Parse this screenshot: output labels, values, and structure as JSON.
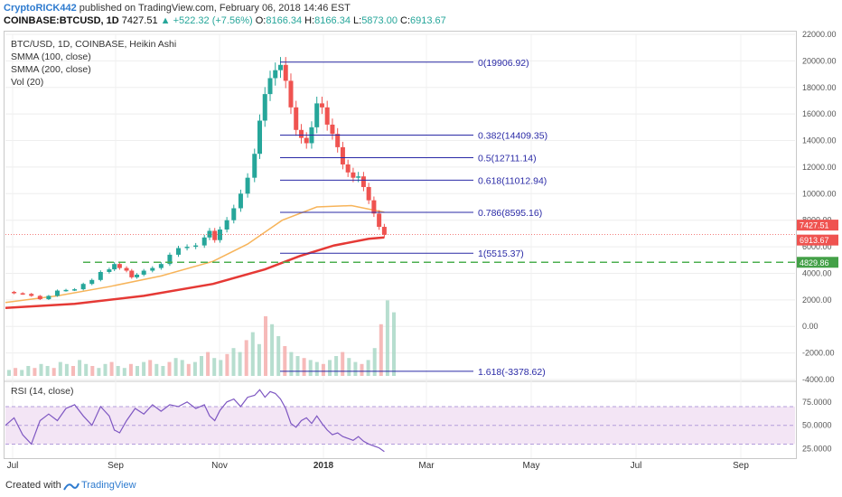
{
  "header": {
    "author": "CryptoRICK442",
    "published_text": "published on TradingView.com, February 06, 2018 14:46 EST",
    "symbol": "COINBASE:BTCUSD, 1D",
    "last": "7427.51",
    "change": "+522.32 (+7.56%)",
    "open_label": "O:",
    "open": "8166.34",
    "high_label": "H:",
    "high": "8166.34",
    "low_label": "L:",
    "low": "5873.00",
    "close_label": "C:",
    "close": "6913.67"
  },
  "legend": {
    "title": "BTC/USD, 1D, COINBASE, Heikin Ashi",
    "smma100": "SMMA (100, close)",
    "smma200": "SMMA (200, close)",
    "vol": "Vol (20)"
  },
  "rsi_legend": "RSI (14, close)",
  "footer": {
    "created": "Created with",
    "brand": "TradingView"
  },
  "colors": {
    "up": "#26a69a",
    "down": "#ef5350",
    "smma100": "#f7b45a",
    "smma200": "#e53935",
    "fib": "#2a2aa6",
    "support": "#4caf50",
    "rsi": "#7e57c2"
  },
  "chart_data": [
    {
      "type": "line",
      "title": "BTC/USD, 1D, COINBASE, Heikin Ashi",
      "price_scale": [
        "22000.00",
        "20000.00",
        "18000.00",
        "16000.00",
        "14000.00",
        "12000.00",
        "10000.00",
        "8000.00",
        "6000.00",
        "4000.00",
        "2000.00",
        "0.00",
        "-2000.00",
        "-4000.00"
      ],
      "time_axis": [
        "Jul",
        "Sep",
        "Nov",
        "2018",
        "Mar",
        "May",
        "Jul",
        "Sep"
      ],
      "ylim": [
        -4000,
        22000
      ],
      "price_tags": {
        "last": "7427.51",
        "close": "6913.67",
        "support": "4829.86"
      },
      "fibonacci": [
        {
          "label": "0(19906.92)",
          "value": 19906.92
        },
        {
          "label": "0.382(14409.35)",
          "value": 14409.35
        },
        {
          "label": "0.5(12711.14)",
          "value": 12711.14
        },
        {
          "label": "0.618(11012.94)",
          "value": 11012.94
        },
        {
          "label": "0.786(8595.16)",
          "value": 8595.16
        },
        {
          "label": "1(5515.37)",
          "value": 5515.37
        },
        {
          "label": "1.618(-3378.62)",
          "value": -3378.62
        }
      ],
      "support_level": 4829.86,
      "price_series": [
        [
          0,
          2600
        ],
        [
          5,
          2500
        ],
        [
          10,
          2450
        ],
        [
          15,
          2300
        ],
        [
          20,
          2050
        ],
        [
          25,
          2300
        ],
        [
          30,
          2700
        ],
        [
          35,
          2750
        ],
        [
          40,
          2800
        ],
        [
          45,
          3200
        ],
        [
          50,
          3500
        ],
        [
          55,
          4100
        ],
        [
          60,
          4300
        ],
        [
          63,
          4700
        ],
        [
          66,
          4400
        ],
        [
          70,
          4200
        ],
        [
          73,
          3700
        ],
        [
          76,
          3900
        ],
        [
          80,
          4200
        ],
        [
          85,
          4400
        ],
        [
          90,
          4700
        ],
        [
          95,
          5400
        ],
        [
          100,
          5900
        ],
        [
          105,
          6000
        ],
        [
          110,
          6100
        ],
        [
          115,
          6700
        ],
        [
          118,
          7200
        ],
        [
          121,
          6500
        ],
        [
          124,
          7300
        ],
        [
          128,
          8000
        ],
        [
          132,
          8900
        ],
        [
          136,
          10000
        ],
        [
          140,
          11200
        ],
        [
          144,
          13000
        ],
        [
          147,
          15500
        ],
        [
          150,
          17500
        ],
        [
          153,
          18700
        ],
        [
          156,
          19300
        ],
        [
          159,
          19700
        ],
        [
          162,
          18500
        ],
        [
          165,
          16500
        ],
        [
          168,
          14800
        ],
        [
          171,
          14200
        ],
        [
          174,
          13800
        ],
        [
          177,
          15000
        ],
        [
          180,
          16800
        ],
        [
          183,
          16500
        ],
        [
          186,
          15200
        ],
        [
          189,
          14500
        ],
        [
          192,
          13500
        ],
        [
          195,
          12200
        ],
        [
          198,
          11600
        ],
        [
          201,
          11200
        ],
        [
          204,
          11300
        ],
        [
          207,
          10500
        ],
        [
          210,
          9500
        ],
        [
          213,
          8500
        ],
        [
          216,
          7500
        ],
        [
          219,
          6900
        ]
      ],
      "smma100": [
        [
          0,
          1800
        ],
        [
          30,
          2300
        ],
        [
          60,
          3000
        ],
        [
          90,
          3800
        ],
        [
          120,
          4900
        ],
        [
          140,
          6200
        ],
        [
          160,
          8000
        ],
        [
          180,
          9000
        ],
        [
          200,
          9100
        ],
        [
          219,
          8600
        ]
      ],
      "smma200": [
        [
          0,
          1400
        ],
        [
          40,
          1700
        ],
        [
          80,
          2300
        ],
        [
          120,
          3200
        ],
        [
          150,
          4300
        ],
        [
          170,
          5300
        ],
        [
          190,
          6100
        ],
        [
          210,
          6600
        ],
        [
          219,
          6700
        ]
      ],
      "volume_bars": [
        3,
        4,
        3,
        5,
        4,
        6,
        5,
        4,
        7,
        6,
        5,
        8,
        6,
        5,
        4,
        6,
        7,
        5,
        4,
        6,
        5,
        7,
        8,
        6,
        5,
        7,
        9,
        8,
        6,
        7,
        10,
        12,
        9,
        8,
        11,
        14,
        12,
        18,
        22,
        16,
        30,
        26,
        20,
        15,
        12,
        10,
        9,
        8,
        7,
        6,
        8,
        10,
        12,
        9,
        7,
        6,
        8,
        14,
        26,
        38,
        32
      ]
    },
    {
      "type": "line",
      "title": "RSI (14, close)",
      "scale": [
        "75.0000",
        "50.0000",
        "25.0000"
      ],
      "ylim": [
        15,
        95
      ],
      "band": [
        30,
        70
      ],
      "values": [
        [
          0,
          50
        ],
        [
          5,
          58
        ],
        [
          10,
          40
        ],
        [
          15,
          30
        ],
        [
          20,
          55
        ],
        [
          25,
          62
        ],
        [
          30,
          55
        ],
        [
          35,
          68
        ],
        [
          40,
          72
        ],
        [
          45,
          60
        ],
        [
          50,
          50
        ],
        [
          55,
          70
        ],
        [
          60,
          60
        ],
        [
          63,
          45
        ],
        [
          66,
          42
        ],
        [
          70,
          55
        ],
        [
          75,
          68
        ],
        [
          80,
          62
        ],
        [
          85,
          72
        ],
        [
          90,
          65
        ],
        [
          95,
          72
        ],
        [
          100,
          70
        ],
        [
          105,
          75
        ],
        [
          110,
          68
        ],
        [
          115,
          72
        ],
        [
          118,
          60
        ],
        [
          121,
          55
        ],
        [
          124,
          66
        ],
        [
          128,
          75
        ],
        [
          132,
          78
        ],
        [
          136,
          70
        ],
        [
          140,
          80
        ],
        [
          144,
          82
        ],
        [
          147,
          88
        ],
        [
          150,
          80
        ],
        [
          153,
          86
        ],
        [
          156,
          84
        ],
        [
          159,
          78
        ],
        [
          162,
          68
        ],
        [
          165,
          52
        ],
        [
          168,
          48
        ],
        [
          171,
          55
        ],
        [
          174,
          58
        ],
        [
          177,
          52
        ],
        [
          180,
          60
        ],
        [
          183,
          52
        ],
        [
          186,
          45
        ],
        [
          189,
          40
        ],
        [
          192,
          42
        ],
        [
          195,
          38
        ],
        [
          198,
          36
        ],
        [
          201,
          34
        ],
        [
          204,
          38
        ],
        [
          207,
          33
        ],
        [
          210,
          30
        ],
        [
          213,
          28
        ],
        [
          216,
          26
        ],
        [
          219,
          22
        ]
      ]
    }
  ]
}
